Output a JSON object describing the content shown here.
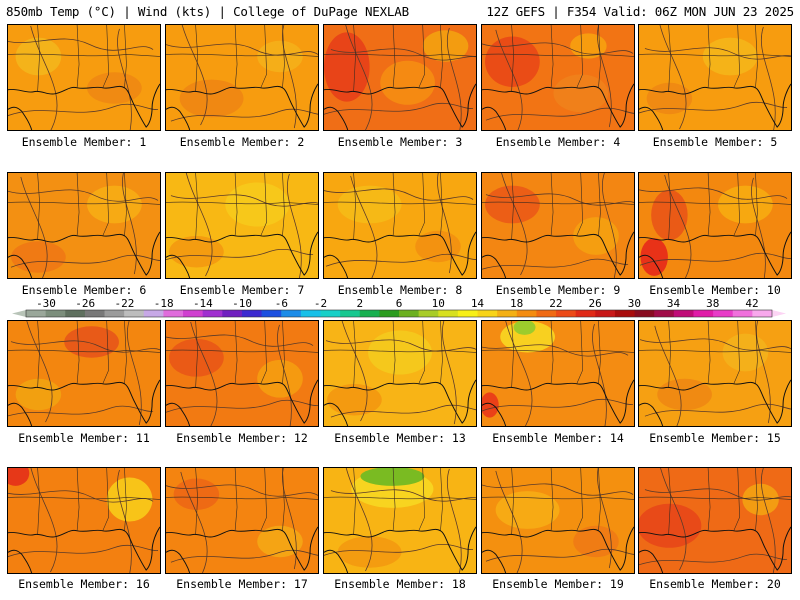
{
  "header": {
    "left": "850mb Temp (°C) | Wind (kts) | College of DuPage NEXLAB",
    "right": "12Z GEFS | F354 Valid: 06Z MON JUN 23 2025"
  },
  "member_prefix": "Ensemble Member: ",
  "members": [
    {
      "id": 1,
      "base": "#f79c0f",
      "patches": [
        [
          "#f4b31a",
          0.2,
          0.3,
          0.25,
          0.3
        ],
        [
          "#f08a12",
          0.7,
          0.6,
          0.3,
          0.25
        ]
      ]
    },
    {
      "id": 2,
      "base": "#f79c0f",
      "patches": [
        [
          "#f08812",
          0.3,
          0.7,
          0.35,
          0.3
        ],
        [
          "#f5ae18",
          0.75,
          0.3,
          0.25,
          0.25
        ]
      ]
    },
    {
      "id": 3,
      "base": "#f06e16",
      "patches": [
        [
          "#e84418",
          0.15,
          0.4,
          0.25,
          0.55
        ],
        [
          "#f58a12",
          0.55,
          0.55,
          0.3,
          0.35
        ],
        [
          "#f39c10",
          0.8,
          0.2,
          0.25,
          0.25
        ]
      ]
    },
    {
      "id": 4,
      "base": "#f27414",
      "patches": [
        [
          "#ea4c16",
          0.2,
          0.35,
          0.3,
          0.4
        ],
        [
          "#f0801a",
          0.65,
          0.65,
          0.3,
          0.3
        ],
        [
          "#f79c0f",
          0.7,
          0.2,
          0.2,
          0.2
        ]
      ]
    },
    {
      "id": 5,
      "base": "#f79c0f",
      "patches": [
        [
          "#f5b318",
          0.6,
          0.3,
          0.3,
          0.3
        ],
        [
          "#f08a12",
          0.2,
          0.7,
          0.25,
          0.25
        ]
      ]
    },
    {
      "id": 6,
      "base": "#f39012",
      "patches": [
        [
          "#f07a14",
          0.2,
          0.8,
          0.3,
          0.25
        ],
        [
          "#f7aa14",
          0.7,
          0.3,
          0.3,
          0.3
        ]
      ]
    },
    {
      "id": 7,
      "base": "#f8b814",
      "patches": [
        [
          "#f7c81a",
          0.6,
          0.3,
          0.35,
          0.35
        ],
        [
          "#f49c10",
          0.2,
          0.75,
          0.3,
          0.25
        ]
      ]
    },
    {
      "id": 8,
      "base": "#f8a710",
      "patches": [
        [
          "#f6b916",
          0.3,
          0.3,
          0.35,
          0.3
        ],
        [
          "#f39210",
          0.75,
          0.7,
          0.25,
          0.25
        ]
      ]
    },
    {
      "id": 9,
      "base": "#f38612",
      "patches": [
        [
          "#ec5e16",
          0.2,
          0.3,
          0.3,
          0.3
        ],
        [
          "#f59e10",
          0.75,
          0.6,
          0.25,
          0.3
        ]
      ]
    },
    {
      "id": 10,
      "base": "#f3880f",
      "patches": [
        [
          "#e83218",
          0.1,
          0.8,
          0.15,
          0.3
        ],
        [
          "#ea5a16",
          0.2,
          0.4,
          0.2,
          0.4
        ],
        [
          "#f7a810",
          0.7,
          0.3,
          0.3,
          0.3
        ]
      ]
    },
    {
      "id": 11,
      "base": "#f3860f",
      "patches": [
        [
          "#e85a18",
          0.55,
          0.2,
          0.3,
          0.25
        ],
        [
          "#f2a010",
          0.2,
          0.7,
          0.25,
          0.25
        ]
      ]
    },
    {
      "id": 12,
      "base": "#f27a12",
      "patches": [
        [
          "#ea5a16",
          0.2,
          0.35,
          0.3,
          0.3
        ],
        [
          "#f59a10",
          0.75,
          0.55,
          0.25,
          0.3
        ]
      ]
    },
    {
      "id": 13,
      "base": "#f8b416",
      "patches": [
        [
          "#f5c81c",
          0.5,
          0.3,
          0.35,
          0.35
        ],
        [
          "#f49a10",
          0.2,
          0.75,
          0.3,
          0.25
        ]
      ]
    },
    {
      "id": 14,
      "base": "#f48c12",
      "patches": [
        [
          "#f8d020",
          0.3,
          0.15,
          0.3,
          0.25
        ],
        [
          "#9ccc2c",
          0.28,
          0.06,
          0.12,
          0.12
        ],
        [
          "#ea4018",
          0.05,
          0.8,
          0.1,
          0.2
        ]
      ]
    },
    {
      "id": 15,
      "base": "#f6a012",
      "patches": [
        [
          "#f4b01a",
          0.7,
          0.3,
          0.25,
          0.3
        ],
        [
          "#f08a12",
          0.3,
          0.7,
          0.3,
          0.25
        ]
      ]
    },
    {
      "id": 16,
      "base": "#f38010",
      "patches": [
        [
          "#e63818",
          0.05,
          0.05,
          0.15,
          0.2
        ],
        [
          "#f8c418",
          0.8,
          0.3,
          0.25,
          0.35
        ]
      ]
    },
    {
      "id": 17,
      "base": "#f48410",
      "patches": [
        [
          "#ee6a14",
          0.2,
          0.25,
          0.25,
          0.25
        ],
        [
          "#f5a414",
          0.75,
          0.7,
          0.25,
          0.25
        ]
      ]
    },
    {
      "id": 18,
      "base": "#f8b414",
      "patches": [
        [
          "#f8d420",
          0.45,
          0.2,
          0.45,
          0.3
        ],
        [
          "#7abb22",
          0.45,
          0.08,
          0.35,
          0.15
        ],
        [
          "#f49c10",
          0.3,
          0.8,
          0.35,
          0.25
        ]
      ]
    },
    {
      "id": 19,
      "base": "#f4900f",
      "patches": [
        [
          "#f7aa14",
          0.3,
          0.4,
          0.35,
          0.3
        ],
        [
          "#f07c14",
          0.75,
          0.7,
          0.25,
          0.25
        ]
      ]
    },
    {
      "id": 20,
      "base": "#ef6a16",
      "patches": [
        [
          "#e84a18",
          0.2,
          0.55,
          0.35,
          0.35
        ],
        [
          "#f39c12",
          0.8,
          0.3,
          0.2,
          0.25
        ]
      ]
    }
  ],
  "colorbar": {
    "ticks": [
      "-30",
      "-26",
      "-22",
      "-18",
      "-14",
      "-10",
      "-6",
      "-2",
      "2",
      "6",
      "10",
      "14",
      "18",
      "22",
      "26",
      "30",
      "34",
      "38",
      "42"
    ],
    "colors": [
      "#9aa79a",
      "#7c8e7c",
      "#5f705f",
      "#797979",
      "#9b9b9b",
      "#bdbdbd",
      "#c7a8e6",
      "#e06cdc",
      "#d040d0",
      "#a030d0",
      "#7020c0",
      "#3c2ad0",
      "#1c50e0",
      "#1c8ce8",
      "#18c0e8",
      "#18d0c8",
      "#18c890",
      "#18b050",
      "#2c9c20",
      "#6cb020",
      "#a8cc28",
      "#d8e020",
      "#f8f018",
      "#f8d418",
      "#f4b014",
      "#f48c10",
      "#f06a14",
      "#ec4a18",
      "#e02a18",
      "#c81818",
      "#a80c0c",
      "#880c20",
      "#a00c48",
      "#c00c78",
      "#e01ca8",
      "#e83cc8",
      "#f070dc",
      "#f8a8ec"
    ]
  }
}
